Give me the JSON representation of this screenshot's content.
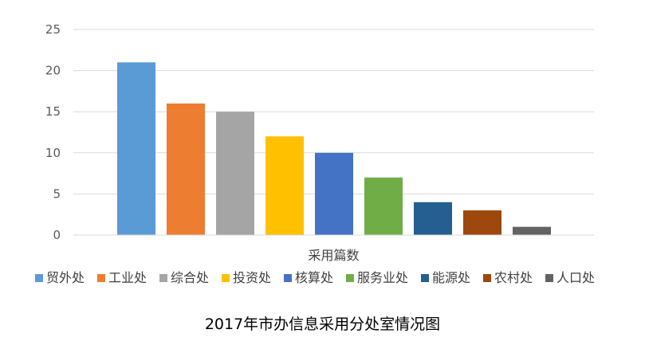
{
  "chart_data": {
    "type": "bar",
    "categories": [
      "贸外处",
      "工业处",
      "综合处",
      "投资处",
      "核算处",
      "服务业处",
      "能源处",
      "农村处",
      "人口处"
    ],
    "values": [
      21,
      16,
      15,
      12,
      10,
      7,
      4,
      3,
      1
    ],
    "colors": [
      "#5b9bd5",
      "#ed7d31",
      "#a5a5a5",
      "#ffc000",
      "#4472c4",
      "#70ad47",
      "#255e91",
      "#9e480e",
      "#636363"
    ],
    "xlabel": "采用篇数",
    "ylabel": "",
    "ylim": [
      0,
      25
    ],
    "yticks": [
      "0",
      "5",
      "10",
      "15",
      "20",
      "25"
    ],
    "grid": true,
    "legend_position": "bottom"
  },
  "caption": "2017年市办信息采用分处室情况图"
}
